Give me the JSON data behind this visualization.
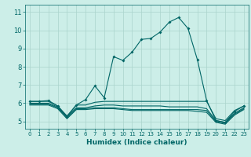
{
  "xlabel": "Humidex (Indice chaleur)",
  "bg_color": "#cceee8",
  "line_color": "#006666",
  "grid_color": "#aad4cc",
  "xlim": [
    -0.5,
    23.5
  ],
  "ylim": [
    4.6,
    11.4
  ],
  "yticks": [
    5,
    6,
    7,
    8,
    9,
    10,
    11
  ],
  "xticks": [
    0,
    1,
    2,
    3,
    4,
    5,
    6,
    7,
    8,
    9,
    10,
    11,
    12,
    13,
    14,
    15,
    16,
    17,
    18,
    19,
    20,
    21,
    22,
    23
  ],
  "line1_x": [
    0,
    1,
    2,
    3,
    4,
    5,
    6,
    7,
    8,
    9,
    10,
    11,
    12,
    13,
    14,
    15,
    16,
    17,
    18,
    19,
    20,
    21,
    22,
    23
  ],
  "line1_y": [
    6.1,
    6.1,
    6.15,
    5.85,
    5.25,
    5.9,
    6.2,
    6.95,
    6.3,
    8.55,
    8.35,
    8.8,
    9.5,
    9.55,
    9.9,
    10.45,
    10.7,
    10.1,
    8.4,
    6.15,
    5.05,
    4.95,
    5.55,
    5.85
  ],
  "line2_x": [
    0,
    1,
    2,
    3,
    4,
    5,
    6,
    7,
    8,
    9,
    10,
    11,
    12,
    13,
    14,
    15,
    16,
    17,
    18,
    19,
    20,
    21,
    22,
    23
  ],
  "line2_y": [
    6.1,
    6.1,
    6.1,
    5.85,
    5.3,
    5.9,
    5.9,
    6.05,
    6.1,
    6.1,
    6.1,
    6.1,
    6.1,
    6.1,
    6.1,
    6.1,
    6.1,
    6.1,
    6.1,
    6.1,
    5.15,
    5.05,
    5.6,
    5.85
  ],
  "line3_x": [
    0,
    1,
    2,
    3,
    4,
    5,
    6,
    7,
    8,
    9,
    10,
    11,
    12,
    13,
    14,
    15,
    16,
    17,
    18,
    19,
    20,
    21,
    22,
    23
  ],
  "line3_y": [
    6.0,
    6.0,
    6.0,
    5.8,
    5.25,
    5.75,
    5.75,
    5.85,
    5.9,
    5.9,
    5.85,
    5.85,
    5.85,
    5.85,
    5.85,
    5.8,
    5.8,
    5.8,
    5.8,
    5.7,
    5.05,
    4.95,
    5.45,
    5.75
  ],
  "line4_x": [
    0,
    1,
    2,
    3,
    4,
    5,
    6,
    7,
    8,
    9,
    10,
    11,
    12,
    13,
    14,
    15,
    16,
    17,
    18,
    19,
    20,
    21,
    22,
    23
  ],
  "line4_y": [
    5.95,
    5.95,
    5.95,
    5.75,
    5.2,
    5.7,
    5.7,
    5.75,
    5.75,
    5.75,
    5.7,
    5.65,
    5.65,
    5.65,
    5.65,
    5.65,
    5.65,
    5.65,
    5.65,
    5.6,
    5.0,
    4.9,
    5.4,
    5.7
  ],
  "line5_x": [
    0,
    1,
    2,
    3,
    4,
    5,
    6,
    7,
    8,
    9,
    10,
    11,
    12,
    13,
    14,
    15,
    16,
    17,
    18,
    19,
    20,
    21,
    22,
    23
  ],
  "line5_y": [
    5.9,
    5.9,
    5.9,
    5.7,
    5.15,
    5.65,
    5.65,
    5.7,
    5.7,
    5.7,
    5.65,
    5.6,
    5.6,
    5.6,
    5.6,
    5.6,
    5.6,
    5.6,
    5.55,
    5.5,
    4.95,
    4.85,
    5.35,
    5.65
  ]
}
